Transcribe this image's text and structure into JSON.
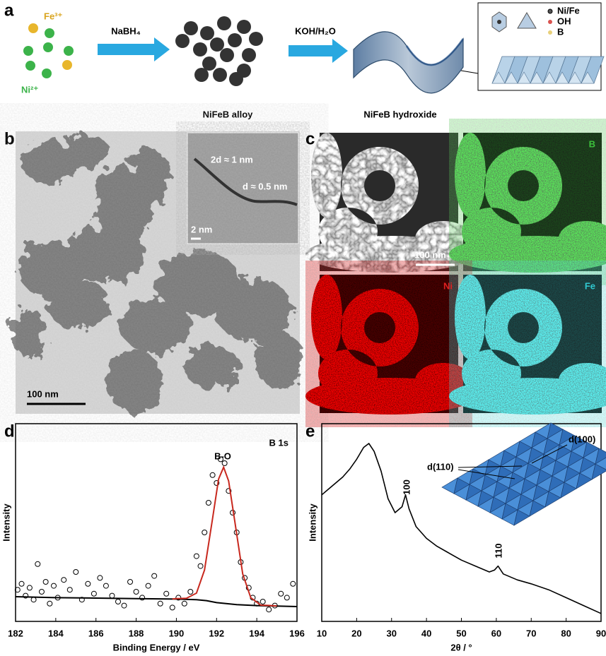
{
  "panels": {
    "a": {
      "label": "a",
      "fe": "Fe³⁺",
      "ni": "Ni²⁺",
      "reagent1": "NaBH₄",
      "reagent2": "KOH/H₂O",
      "product1": "NiFeB alloy",
      "product2": "NiFeB hydroxide",
      "legend": [
        "Ni/Fe",
        "OH",
        "B"
      ]
    },
    "b": {
      "label": "b",
      "spacing1": "2d ≈ 1 nm",
      "spacing2": "d ≈ 0.5 nm",
      "inset_scale": "2 nm",
      "scale": "100 nm"
    },
    "c": {
      "label": "c",
      "scale": "100 nm",
      "maps": [
        "B",
        "Ni",
        "Fe"
      ]
    }
  },
  "chart_data": [
    {
      "type": "scatter",
      "panel_label": "d",
      "title": "B 1s",
      "annotations": [
        "B-O"
      ],
      "xlabel": "Binding Energy / eV",
      "ylabel": "Intensity",
      "xlim": [
        182,
        196
      ],
      "xticks": [
        182,
        184,
        186,
        188,
        190,
        192,
        194,
        196
      ],
      "ylim": [
        0,
        100
      ],
      "points": {
        "color": "#000000",
        "x": [
          182.1,
          182.3,
          182.5,
          182.7,
          182.9,
          183.1,
          183.3,
          183.5,
          183.7,
          183.9,
          184.1,
          184.4,
          184.7,
          185,
          185.3,
          185.6,
          185.9,
          186.2,
          186.5,
          186.8,
          187.1,
          187.4,
          187.7,
          188,
          188.3,
          188.6,
          188.9,
          189.2,
          189.5,
          189.8,
          190.1,
          190.4,
          190.7,
          191,
          191.2,
          191.4,
          191.6,
          191.8,
          192,
          192.2,
          192.4,
          192.6,
          192.8,
          193,
          193.2,
          193.4,
          193.6,
          193.8,
          194,
          194.3,
          194.6,
          194.9,
          195.2,
          195.5,
          195.8
        ],
        "values": [
          16,
          19,
          13,
          17,
          11,
          29,
          15,
          20,
          9,
          18,
          12,
          21,
          16,
          25,
          11,
          19,
          14,
          22,
          18,
          13,
          10,
          8,
          20,
          15,
          12,
          18,
          23,
          9,
          14,
          7,
          12,
          9,
          15,
          33,
          28,
          45,
          60,
          74,
          70,
          82,
          80,
          66,
          55,
          45,
          30,
          22,
          17,
          12,
          9,
          10,
          6,
          8,
          14,
          12,
          19
        ]
      },
      "fit": {
        "color": "#c8281e",
        "x": [
          189.8,
          190,
          190.5,
          191,
          191.4,
          191.8,
          192.1,
          192.35,
          192.6,
          192.9,
          193.3,
          193.7,
          194.2,
          194.7,
          195
        ],
        "values": [
          11.4,
          11.5,
          11.7,
          14.3,
          26,
          52,
          72,
          78,
          71,
          51,
          24,
          12,
          8.2,
          8,
          7.8
        ]
      },
      "background": {
        "color": "#000000",
        "x": [
          182,
          184,
          186,
          188,
          190,
          191,
          191.5,
          192,
          193,
          194,
          196
        ],
        "values": [
          12.5,
          12,
          11.8,
          11.5,
          11.3,
          11,
          10.5,
          9.5,
          8.5,
          8,
          7.5
        ]
      }
    },
    {
      "type": "line",
      "panel_label": "e",
      "annotations": [
        "100",
        "110"
      ],
      "inset_labels": [
        "d(100)",
        "d(110)"
      ],
      "xlabel": "2θ / °",
      "ylabel": "Intensity",
      "color": "#000000",
      "xlim": [
        10,
        90
      ],
      "xticks": [
        10,
        20,
        30,
        40,
        50,
        60,
        70,
        80,
        90
      ],
      "ylim": [
        0,
        100
      ],
      "x": [
        10,
        12,
        14,
        16,
        18,
        20,
        22,
        23.5,
        25,
        27,
        29,
        31,
        33,
        34,
        35,
        37,
        40,
        43,
        46,
        50,
        54,
        58,
        59.5,
        60.5,
        62,
        66,
        70,
        75,
        80,
        85,
        90
      ],
      "values": [
        64,
        67,
        70,
        73,
        77,
        82,
        88,
        90,
        86,
        76,
        62,
        55,
        58,
        64,
        57,
        48,
        42,
        38,
        35,
        31,
        28,
        25,
        26,
        28,
        24,
        21,
        19,
        16,
        12,
        8,
        4
      ]
    }
  ]
}
